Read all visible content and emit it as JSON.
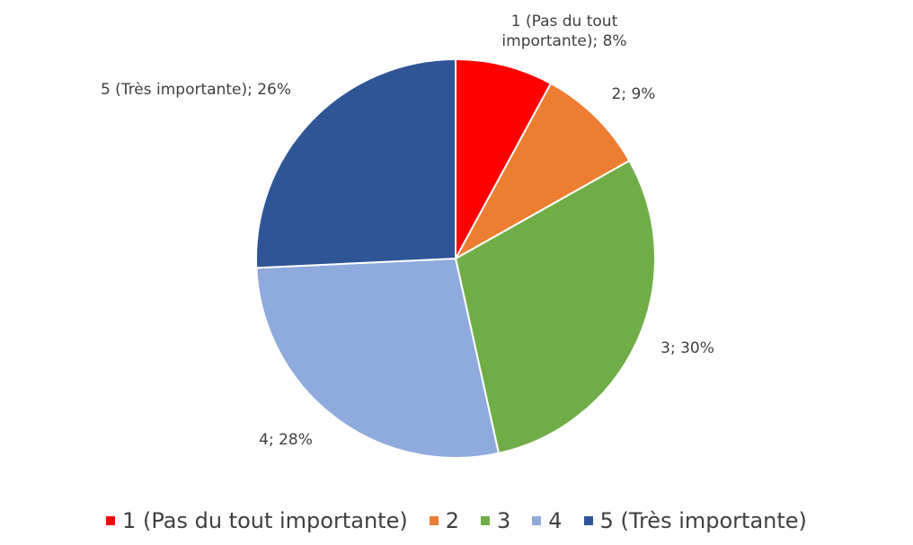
{
  "chart_data": {
    "type": "pie",
    "categories": [
      "1 (Pas du tout importante)",
      "2",
      "3",
      "4",
      "5 (Très importante)"
    ],
    "values": [
      8,
      9,
      30,
      28,
      26
    ],
    "value_labels": [
      "1 (Pas du tout importante); 8%",
      "2; 9%",
      "3; 30%",
      "4; 28%",
      "5 (Très importante); 26%"
    ],
    "colors": [
      "#ff0000",
      "#ed7d31",
      "#70ad47",
      "#8faadc",
      "#2f5597"
    ],
    "legend": "bottom"
  }
}
